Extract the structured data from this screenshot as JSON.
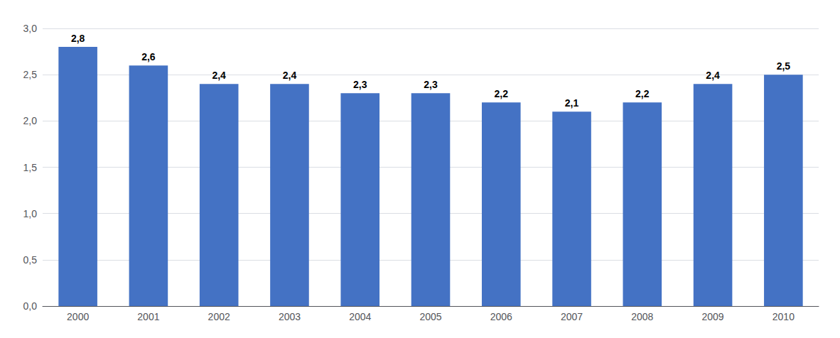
{
  "chart_data": {
    "type": "bar",
    "categories": [
      "2000",
      "2001",
      "2002",
      "2003",
      "2004",
      "2005",
      "2006",
      "2007",
      "2008",
      "2009",
      "2010"
    ],
    "values": [
      2.8,
      2.6,
      2.4,
      2.4,
      2.3,
      2.3,
      2.2,
      2.1,
      2.2,
      2.4,
      2.5
    ],
    "value_labels": [
      "2,8",
      "2,6",
      "2,4",
      "2,4",
      "2,3",
      "2,3",
      "2,2",
      "2,1",
      "2,2",
      "2,4",
      "2,5"
    ],
    "color": "#4472C4",
    "ylim": [
      0.0,
      3.0
    ],
    "yticks": [
      {
        "value": 0.0,
        "label": "0,0"
      },
      {
        "value": 0.5,
        "label": "0,5"
      },
      {
        "value": 1.0,
        "label": "1,0"
      },
      {
        "value": 1.5,
        "label": "1,5"
      },
      {
        "value": 2.0,
        "label": "2,0"
      },
      {
        "value": 2.5,
        "label": "2,5"
      },
      {
        "value": 3.0,
        "label": "3,0"
      }
    ],
    "grid": true,
    "data_labels": true
  }
}
